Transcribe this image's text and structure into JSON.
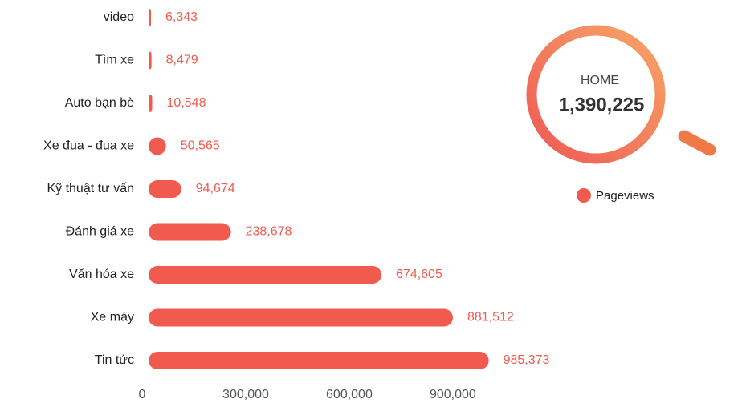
{
  "chart_data": {
    "type": "bar",
    "orientation": "horizontal",
    "categories": [
      "video",
      "Tìm xe",
      "Auto bạn bè",
      "Xe đua - đua xe",
      "Kỹ thuật tư vấn",
      "Đánh giá xe",
      "Văn hóa xe",
      "Xe máy",
      "Tin tức"
    ],
    "series": [
      {
        "name": "Pageviews",
        "color": "#f05a4f",
        "values": [
          6343,
          8479,
          10548,
          50565,
          94674,
          238678,
          674605,
          881512,
          985373
        ],
        "value_labels": [
          "6,343",
          "8,479",
          "10,548",
          "50,565",
          "94,674",
          "238,678",
          "674,605",
          "881,512",
          "985,373"
        ]
      }
    ],
    "xlim": [
      0,
      1070000
    ],
    "xticks": [
      0,
      {
        "value": 300000,
        "label": "300,000"
      },
      {
        "value": 600000,
        "label": "600,000"
      },
      {
        "value": 900000,
        "label": "900,000"
      }
    ],
    "legend": "right",
    "total": {
      "label": "HOME",
      "value": 1390225,
      "value_label": "1,390,225"
    }
  }
}
